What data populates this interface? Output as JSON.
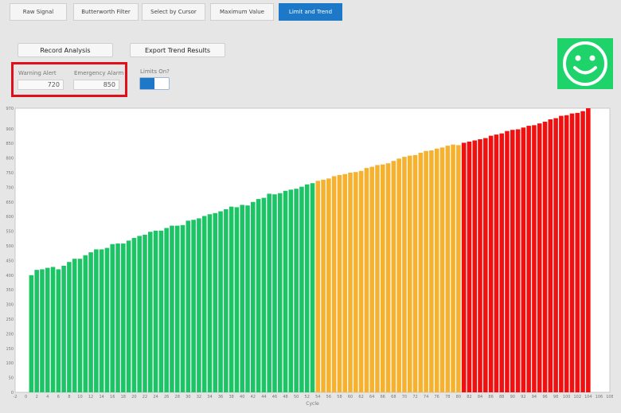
{
  "tabs": [
    {
      "label": "Raw Signal"
    },
    {
      "label": "Butterworth Filter"
    },
    {
      "label": "Select by Cursor"
    },
    {
      "label": "Maximum Value"
    },
    {
      "label": "Limit and Trend"
    }
  ],
  "buttons": {
    "record": "Record Analysis",
    "export": "Export Trend Results"
  },
  "limits": {
    "warning_label": "Warning Alert",
    "warning_value": "720",
    "emergency_label": "Emergency Alarm",
    "emergency_value": "850",
    "toggle_label": "Limits On?",
    "toggle_on": true
  },
  "status": {
    "indicator_icon": "smiley-face-icon",
    "color": "#1fd36b"
  },
  "colors": {
    "accent": "#1e78c8",
    "normal": "#1dc466",
    "warning": "#f6b12f",
    "emergency": "#f01010"
  },
  "chart_data": {
    "type": "bar",
    "xlabel": "Cycle",
    "ylabel": "",
    "ylim": [
      0,
      970
    ],
    "xlim": [
      -2,
      108
    ],
    "yticks": [
      0,
      50,
      100,
      150,
      200,
      250,
      300,
      350,
      400,
      450,
      500,
      550,
      600,
      650,
      700,
      750,
      800,
      850,
      900,
      970
    ],
    "xticks": [
      -2,
      0,
      2,
      4,
      6,
      8,
      10,
      12,
      14,
      16,
      18,
      20,
      22,
      24,
      26,
      28,
      30,
      32,
      34,
      36,
      38,
      40,
      42,
      44,
      46,
      48,
      50,
      52,
      54,
      56,
      58,
      60,
      62,
      64,
      66,
      68,
      70,
      72,
      74,
      76,
      78,
      80,
      82,
      84,
      86,
      88,
      90,
      92,
      94,
      96,
      98,
      100,
      102,
      104,
      106,
      108
    ],
    "warning_limit": 720,
    "emergency_limit": 850,
    "values": [
      400,
      418,
      420,
      425,
      428,
      420,
      432,
      445,
      456,
      456,
      468,
      478,
      488,
      488,
      493,
      506,
      508,
      508,
      518,
      527,
      534,
      538,
      548,
      552,
      552,
      561,
      569,
      569,
      571,
      586,
      589,
      594,
      602,
      608,
      612,
      618,
      625,
      634,
      632,
      640,
      638,
      650,
      660,
      664,
      678,
      676,
      680,
      688,
      692,
      695,
      702,
      710,
      714,
      722,
      726,
      730,
      738,
      742,
      745,
      750,
      752,
      756,
      766,
      770,
      776,
      778,
      782,
      790,
      798,
      804,
      808,
      810,
      818,
      824,
      826,
      832,
      836,
      842,
      846,
      844,
      852,
      856,
      860,
      864,
      868,
      876,
      880,
      884,
      892,
      896,
      898,
      904,
      910,
      912,
      918,
      924,
      932,
      936,
      944,
      946,
      952,
      954,
      960,
      970
    ]
  }
}
